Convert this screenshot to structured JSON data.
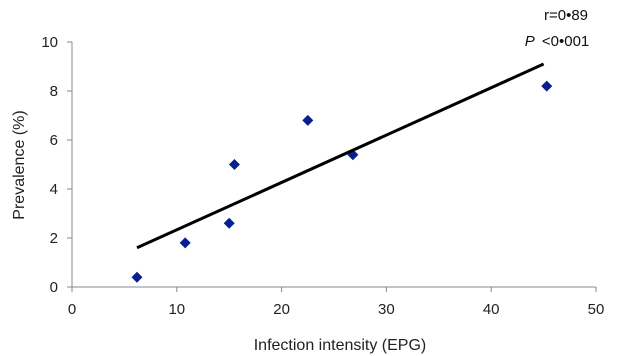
{
  "chart_data": {
    "type": "scatter",
    "title": "",
    "xlabel": "Infection intensity (EPG)",
    "ylabel": "Prevalence (%)",
    "xlim": [
      0,
      50
    ],
    "ylim": [
      0,
      10
    ],
    "x_ticks": [
      0,
      10,
      20,
      30,
      40,
      50
    ],
    "y_ticks": [
      0,
      2,
      4,
      6,
      8,
      10
    ],
    "x_tick_labels": [
      "0",
      "10",
      "20",
      "30",
      "40",
      "50"
    ],
    "y_tick_labels": [
      "0",
      "2",
      "4",
      "6",
      "8",
      "10"
    ],
    "grid": false,
    "legend": "none",
    "marker": "diamond",
    "marker_color": "#0a1f8f",
    "series": [
      {
        "points": [
          {
            "x": 6.2,
            "y": 0.4
          },
          {
            "x": 10.8,
            "y": 1.8
          },
          {
            "x": 15.0,
            "y": 2.6
          },
          {
            "x": 15.5,
            "y": 5.0
          },
          {
            "x": 22.5,
            "y": 6.8
          },
          {
            "x": 26.8,
            "y": 5.4
          },
          {
            "x": 45.3,
            "y": 8.2
          }
        ]
      }
    ],
    "trendline": {
      "type": "linear",
      "color": "#000000",
      "from": {
        "x": 6.2,
        "y": 1.6
      },
      "to": {
        "x": 45.0,
        "y": 9.1
      }
    },
    "annotations": {
      "r": "r=0•89",
      "p_symbol": "P",
      "p_value": "<0•001"
    }
  }
}
